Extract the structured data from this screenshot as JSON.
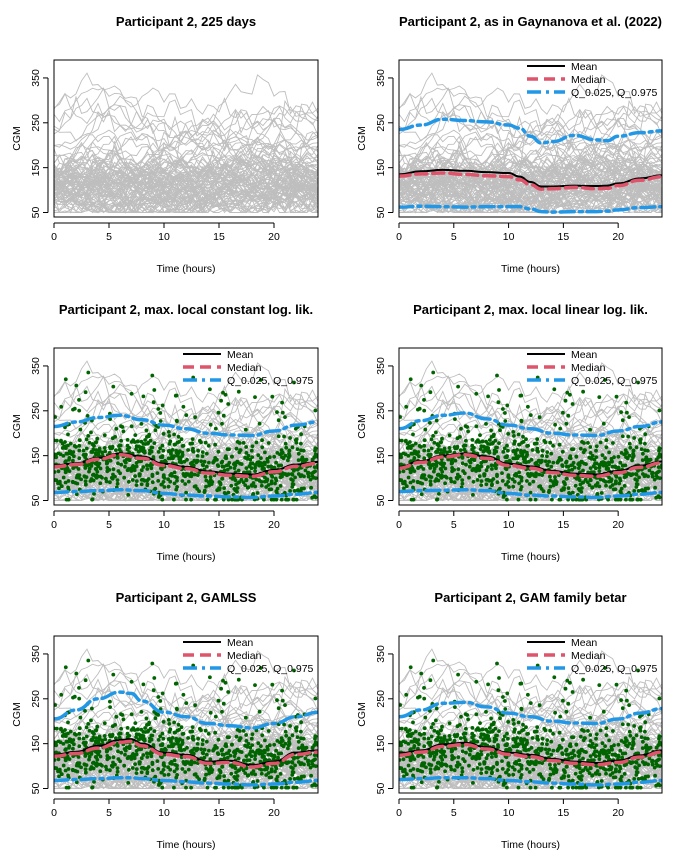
{
  "colors": {
    "traces": "#bebebe",
    "points": "#006400",
    "mean": "#000000",
    "median": "#df536b",
    "quantile": "#2297e6"
  },
  "chart_data": [
    {
      "type": "line",
      "title": "Participant 2, 225 days",
      "xlabel": "Time (hours)",
      "ylabel": "CGM",
      "xlim": [
        0,
        24
      ],
      "ylim": [
        40,
        390
      ],
      "xticks": [
        0,
        5,
        10,
        15,
        20
      ],
      "yticks": [
        50,
        150,
        250,
        350
      ],
      "traces": true,
      "points": false,
      "legend": null
    },
    {
      "type": "line",
      "title": "Participant 2,  as in Gaynanova et al. (2022)",
      "xlabel": "Time (hours)",
      "ylabel": "CGM",
      "xlim": [
        0,
        24
      ],
      "ylim": [
        40,
        390
      ],
      "xticks": [
        0,
        5,
        10,
        15,
        20
      ],
      "yticks": [
        50,
        150,
        250,
        350
      ],
      "traces": true,
      "points": false,
      "legend": {
        "position": "top-right",
        "entries": [
          "Mean",
          "Median",
          "Q_0.025, Q_0.975"
        ]
      },
      "x": [
        0,
        2,
        4,
        6,
        8,
        10,
        11,
        12,
        13,
        14,
        16,
        18,
        19,
        20,
        22,
        24
      ],
      "series": [
        {
          "name": "Mean",
          "values": [
            135,
            142,
            145,
            143,
            140,
            138,
            130,
            118,
            108,
            108,
            110,
            109,
            110,
            115,
            126,
            133
          ]
        },
        {
          "name": "Median",
          "values": [
            131,
            136,
            138,
            135,
            132,
            130,
            123,
            112,
            102,
            103,
            106,
            103,
            104,
            110,
            122,
            130
          ]
        },
        {
          "name": "Q_0.025",
          "values": [
            62,
            64,
            63,
            62,
            63,
            63,
            63,
            58,
            52,
            51,
            52,
            52,
            53,
            56,
            61,
            63
          ]
        },
        {
          "name": "Q_0.975",
          "values": [
            235,
            245,
            258,
            255,
            252,
            245,
            238,
            220,
            205,
            208,
            222,
            212,
            210,
            220,
            228,
            232
          ]
        }
      ]
    },
    {
      "type": "scatter",
      "title": "Participant 2, max. local constant log. lik.",
      "xlabel": "Time (hours)",
      "ylabel": "CGM",
      "xlim": [
        0,
        24
      ],
      "ylim": [
        40,
        390
      ],
      "xticks": [
        0,
        5,
        10,
        15,
        20
      ],
      "yticks": [
        50,
        150,
        250,
        350
      ],
      "traces": true,
      "points": true,
      "legend": {
        "position": "top-right",
        "entries": [
          "Mean",
          "Median",
          "Q_0.025, Q_0.975"
        ]
      },
      "x": [
        0,
        2,
        4,
        6,
        8,
        10,
        12,
        14,
        16,
        18,
        20,
        22,
        24
      ],
      "series": [
        {
          "name": "Mean",
          "values": [
            128,
            133,
            145,
            155,
            148,
            132,
            125,
            115,
            110,
            108,
            118,
            130,
            136
          ]
        },
        {
          "name": "Median",
          "values": [
            125,
            130,
            142,
            152,
            144,
            128,
            121,
            111,
            106,
            104,
            114,
            126,
            133
          ]
        },
        {
          "name": "Q_0.025",
          "values": [
            68,
            70,
            72,
            74,
            72,
            66,
            62,
            60,
            58,
            57,
            60,
            64,
            68
          ]
        },
        {
          "name": "Q_0.975",
          "values": [
            215,
            225,
            235,
            240,
            230,
            218,
            210,
            200,
            196,
            195,
            205,
            218,
            225
          ]
        }
      ]
    },
    {
      "type": "scatter",
      "title": "Participant 2, max. local linear log. lik.",
      "xlabel": "Time (hours)",
      "ylabel": "CGM",
      "xlim": [
        0,
        24
      ],
      "ylim": [
        40,
        390
      ],
      "xticks": [
        0,
        5,
        10,
        15,
        20
      ],
      "yticks": [
        50,
        150,
        250,
        350
      ],
      "traces": true,
      "points": true,
      "legend": {
        "position": "top-right",
        "entries": [
          "Mean",
          "Median",
          "Q_0.025, Q_0.975"
        ]
      },
      "x": [
        0,
        2,
        4,
        6,
        8,
        10,
        12,
        14,
        16,
        18,
        20,
        22,
        24
      ],
      "series": [
        {
          "name": "Mean",
          "values": [
            125,
            138,
            150,
            155,
            148,
            132,
            126,
            116,
            110,
            108,
            116,
            128,
            137
          ]
        },
        {
          "name": "Median",
          "values": [
            122,
            135,
            147,
            152,
            144,
            128,
            122,
            112,
            106,
            104,
            112,
            124,
            134
          ]
        },
        {
          "name": "Q_0.025",
          "values": [
            70,
            72,
            73,
            74,
            72,
            66,
            62,
            60,
            58,
            57,
            60,
            64,
            68
          ]
        },
        {
          "name": "Q_0.975",
          "values": [
            210,
            228,
            240,
            245,
            232,
            218,
            210,
            200,
            196,
            195,
            205,
            215,
            225
          ]
        }
      ]
    },
    {
      "type": "scatter",
      "title": "Participant 2,  GAMLSS",
      "xlabel": "Time (hours)",
      "ylabel": "CGM",
      "xlim": [
        0,
        24
      ],
      "ylim": [
        40,
        390
      ],
      "xticks": [
        0,
        5,
        10,
        15,
        20
      ],
      "yticks": [
        50,
        150,
        250,
        350
      ],
      "traces": true,
      "points": true,
      "legend": {
        "position": "top-right",
        "entries": [
          "Mean",
          "Median",
          "Q_0.025, Q_0.975"
        ]
      },
      "x": [
        0,
        2,
        4,
        6,
        7,
        8,
        10,
        12,
        14,
        16,
        18,
        20,
        22,
        24
      ],
      "series": [
        {
          "name": "Mean",
          "values": [
            125,
            132,
            145,
            158,
            160,
            150,
            130,
            125,
            110,
            112,
            102,
            110,
            130,
            135
          ]
        },
        {
          "name": "Median",
          "values": [
            122,
            128,
            140,
            153,
            155,
            145,
            126,
            121,
            106,
            108,
            98,
            106,
            126,
            131
          ]
        },
        {
          "name": "Q_0.025",
          "values": [
            68,
            70,
            72,
            74,
            74,
            72,
            68,
            65,
            62,
            60,
            58,
            60,
            64,
            68
          ]
        },
        {
          "name": "Q_0.975",
          "values": [
            205,
            225,
            250,
            265,
            262,
            245,
            220,
            210,
            195,
            190,
            185,
            195,
            210,
            220
          ]
        }
      ]
    },
    {
      "type": "scatter",
      "title": "Participant 2,  GAM family betar",
      "xlabel": "Time (hours)",
      "ylabel": "CGM",
      "xlim": [
        0,
        24
      ],
      "ylim": [
        40,
        390
      ],
      "xticks": [
        0,
        5,
        10,
        15,
        20
      ],
      "yticks": [
        50,
        150,
        250,
        350
      ],
      "traces": true,
      "points": true,
      "legend": {
        "position": "top-right",
        "entries": [
          "Mean",
          "Median",
          "Q_0.025, Q_0.975"
        ]
      },
      "x": [
        0,
        2,
        4,
        6,
        8,
        10,
        12,
        14,
        16,
        18,
        20,
        22,
        24
      ],
      "series": [
        {
          "name": "Mean",
          "values": [
            128,
            135,
            148,
            152,
            142,
            130,
            125,
            116,
            110,
            107,
            112,
            124,
            135
          ]
        },
        {
          "name": "Median",
          "values": [
            124,
            131,
            144,
            148,
            138,
            126,
            121,
            112,
            106,
            103,
            108,
            120,
            131
          ]
        },
        {
          "name": "Q_0.025",
          "values": [
            70,
            72,
            74,
            74,
            72,
            68,
            65,
            62,
            60,
            58,
            60,
            64,
            68
          ]
        },
        {
          "name": "Q_0.975",
          "values": [
            210,
            225,
            240,
            242,
            232,
            218,
            210,
            200,
            196,
            195,
            205,
            218,
            228
          ]
        }
      ]
    }
  ]
}
